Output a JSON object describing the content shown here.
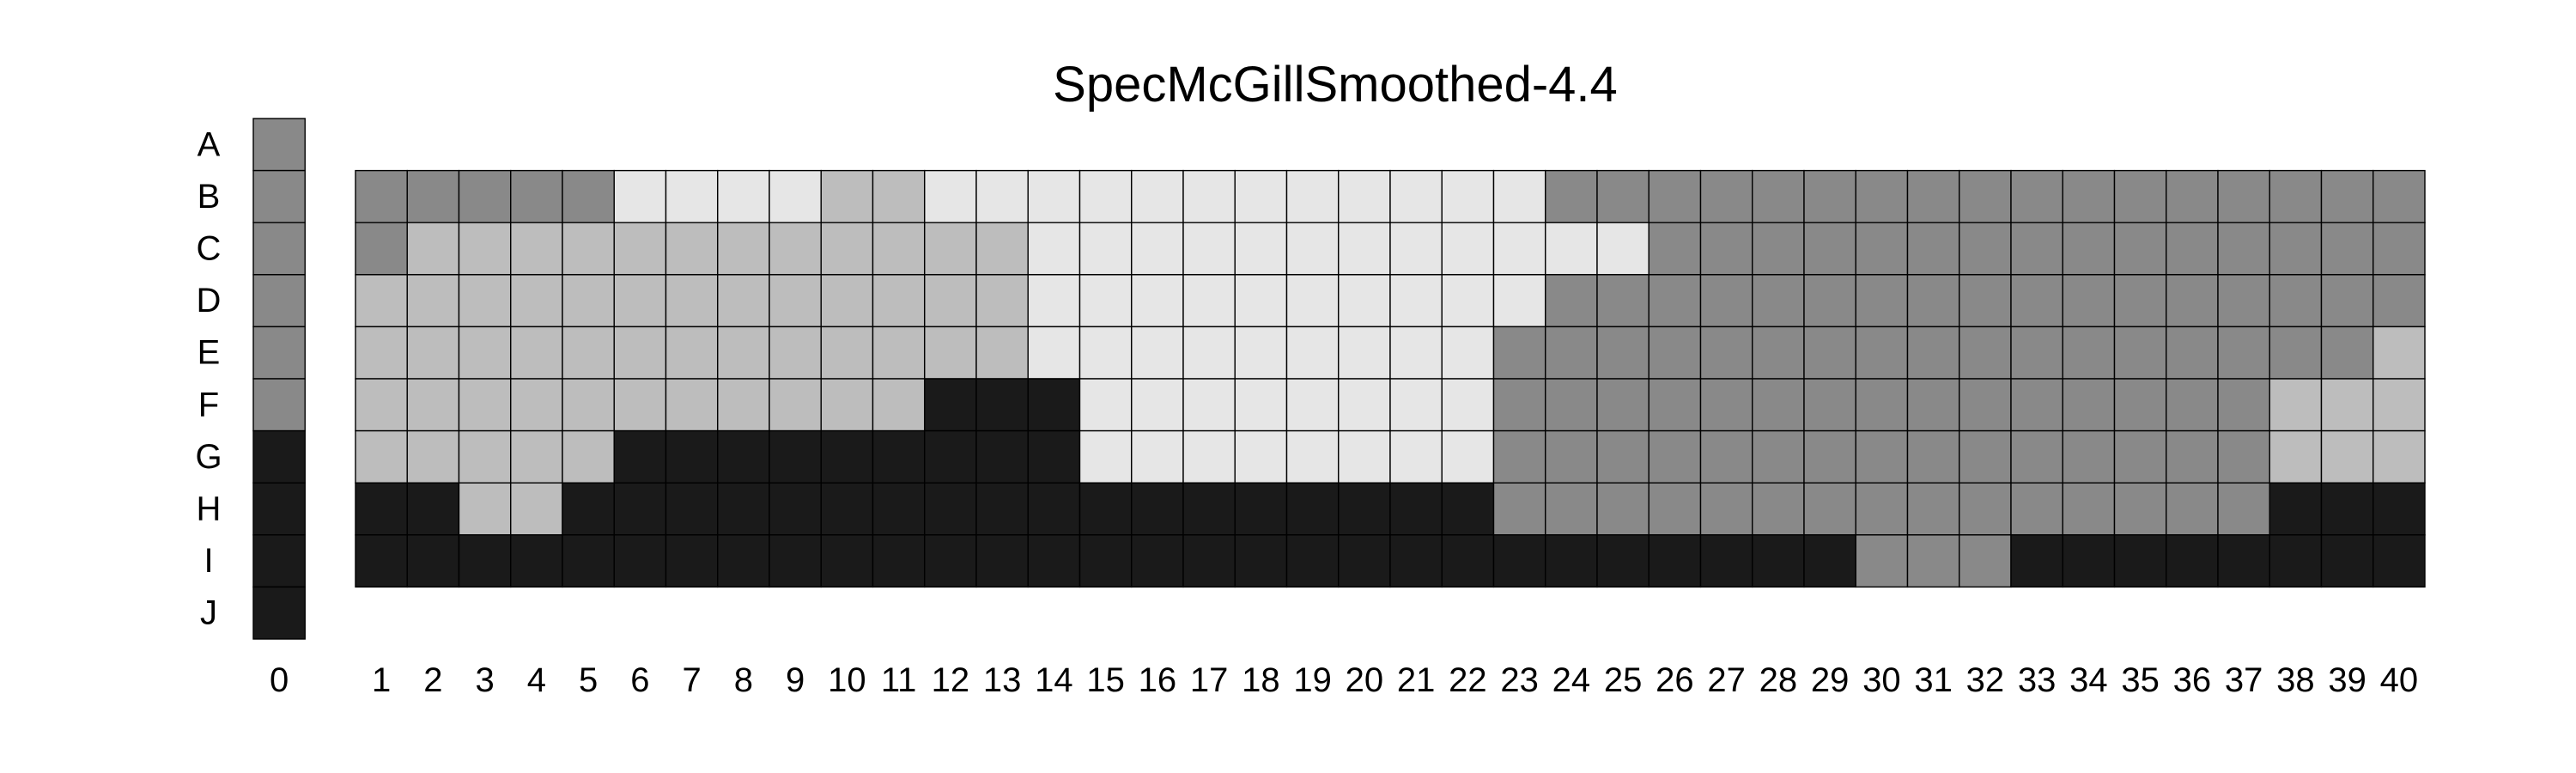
{
  "chart_data": {
    "type": "heatmap",
    "title": "SpecMcGillSmoothed-4.4",
    "palette": {
      "0": "#1a1a1a",
      "1": "#898989",
      "2": "#bdbdbd",
      "3": "#e6e6e6"
    },
    "reference_column": {
      "column": "0",
      "rows": [
        "A",
        "B",
        "C",
        "D",
        "E",
        "F",
        "G",
        "H",
        "I",
        "J"
      ],
      "values": [
        1,
        1,
        1,
        1,
        1,
        1,
        0,
        0,
        0,
        0
      ]
    },
    "grid": {
      "columns": [
        "1",
        "2",
        "3",
        "4",
        "5",
        "6",
        "7",
        "8",
        "9",
        "10",
        "11",
        "12",
        "13",
        "14",
        "15",
        "16",
        "17",
        "18",
        "19",
        "20",
        "21",
        "22",
        "23",
        "24",
        "25",
        "26",
        "27",
        "28",
        "29",
        "30",
        "31",
        "32",
        "33",
        "34",
        "35",
        "36",
        "37",
        "38",
        "39",
        "40"
      ],
      "rows": [
        "B",
        "C",
        "D",
        "E",
        "F",
        "G",
        "H",
        "I"
      ],
      "values": [
        [
          1,
          1,
          1,
          1,
          1,
          3,
          3,
          3,
          3,
          2,
          2,
          3,
          3,
          3,
          3,
          3,
          3,
          3,
          3,
          3,
          3,
          3,
          3,
          1,
          1,
          1,
          1,
          1,
          1,
          1,
          1,
          1,
          1,
          1,
          1,
          1,
          1,
          1,
          1,
          1
        ],
        [
          1,
          2,
          2,
          2,
          2,
          2,
          2,
          2,
          2,
          2,
          2,
          2,
          2,
          3,
          3,
          3,
          3,
          3,
          3,
          3,
          3,
          3,
          3,
          3,
          3,
          1,
          1,
          1,
          1,
          1,
          1,
          1,
          1,
          1,
          1,
          1,
          1,
          1,
          1,
          1
        ],
        [
          2,
          2,
          2,
          2,
          2,
          2,
          2,
          2,
          2,
          2,
          2,
          2,
          2,
          3,
          3,
          3,
          3,
          3,
          3,
          3,
          3,
          3,
          3,
          1,
          1,
          1,
          1,
          1,
          1,
          1,
          1,
          1,
          1,
          1,
          1,
          1,
          1,
          1,
          1,
          1
        ],
        [
          2,
          2,
          2,
          2,
          2,
          2,
          2,
          2,
          2,
          2,
          2,
          2,
          2,
          3,
          3,
          3,
          3,
          3,
          3,
          3,
          3,
          3,
          1,
          1,
          1,
          1,
          1,
          1,
          1,
          1,
          1,
          1,
          1,
          1,
          1,
          1,
          1,
          1,
          1,
          2
        ],
        [
          2,
          2,
          2,
          2,
          2,
          2,
          2,
          2,
          2,
          2,
          2,
          0,
          0,
          0,
          3,
          3,
          3,
          3,
          3,
          3,
          3,
          3,
          1,
          1,
          1,
          1,
          1,
          1,
          1,
          1,
          1,
          1,
          1,
          1,
          1,
          1,
          1,
          2,
          2,
          2
        ],
        [
          2,
          2,
          2,
          2,
          2,
          0,
          0,
          0,
          0,
          0,
          0,
          0,
          0,
          0,
          3,
          3,
          3,
          3,
          3,
          3,
          3,
          3,
          1,
          1,
          1,
          1,
          1,
          1,
          1,
          1,
          1,
          1,
          1,
          1,
          1,
          1,
          1,
          2,
          2,
          2
        ],
        [
          0,
          0,
          2,
          2,
          0,
          0,
          0,
          0,
          0,
          0,
          0,
          0,
          0,
          0,
          0,
          0,
          0,
          0,
          0,
          0,
          0,
          0,
          1,
          1,
          1,
          1,
          1,
          1,
          1,
          1,
          1,
          1,
          1,
          1,
          1,
          1,
          1,
          0,
          0,
          0
        ],
        [
          0,
          0,
          0,
          0,
          0,
          0,
          0,
          0,
          0,
          0,
          0,
          0,
          0,
          0,
          0,
          0,
          0,
          0,
          0,
          0,
          0,
          0,
          0,
          0,
          0,
          0,
          0,
          0,
          0,
          1,
          1,
          1,
          0,
          0,
          0,
          0,
          0,
          0,
          0,
          0
        ]
      ]
    }
  }
}
